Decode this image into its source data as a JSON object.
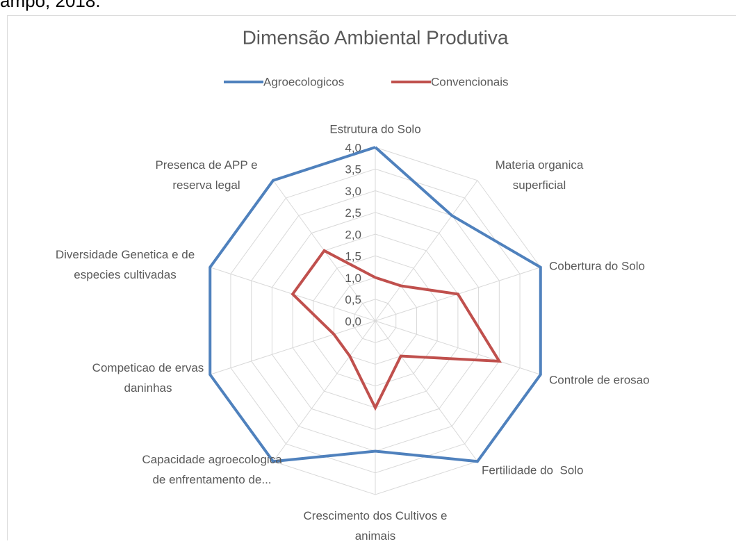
{
  "caption_fragment": "ampo, 2018.",
  "chart_data": {
    "type": "radar",
    "title": "Dimensão Ambiental Produtiva",
    "categories": [
      "Estrutura do Solo",
      "Materia organica superficial",
      "Cobertura do Solo",
      "Controle de erosao",
      "Fertilidade do  Solo",
      "Crescimento dos Cultivos e animais",
      "Capacidade agroecologica de enfrentamento de...",
      "Competicao de ervas daninhas",
      "Diversidade Genetica e de especies cultivadas",
      "Presenca de APP e reserva legal"
    ],
    "series": [
      {
        "name": "Agroecologicos",
        "color": "#4f81bd",
        "values": [
          4,
          3,
          4,
          4,
          4,
          3,
          4,
          4,
          4,
          4
        ]
      },
      {
        "name": "Convencionais",
        "color": "#c0504d",
        "values": [
          1,
          1,
          2,
          3,
          1,
          2,
          1,
          1,
          2,
          2
        ]
      }
    ],
    "ylim": [
      0,
      4
    ],
    "yticks": [
      {
        "value": 0,
        "label": "0,0"
      },
      {
        "value": 0.5,
        "label": "0,5"
      },
      {
        "value": 1,
        "label": "1,0"
      },
      {
        "value": 1.5,
        "label": "1,5"
      },
      {
        "value": 2,
        "label": "2,0"
      },
      {
        "value": 2.5,
        "label": "2,5"
      },
      {
        "value": 3,
        "label": "3,0"
      },
      {
        "value": 3.5,
        "label": "3,5"
      },
      {
        "value": 4,
        "label": "4,0"
      }
    ],
    "grid": true,
    "legend": "top"
  }
}
